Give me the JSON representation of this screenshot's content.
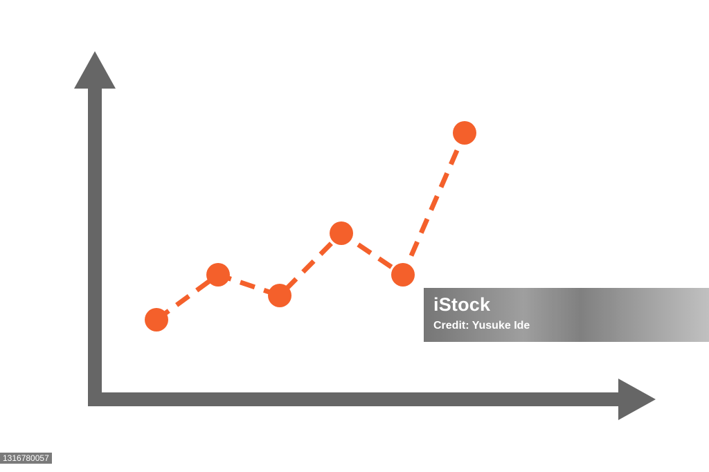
{
  "chart_data": {
    "type": "line",
    "title": "",
    "xlabel": "",
    "ylabel": "",
    "x": [
      1,
      2,
      3,
      4,
      5,
      6
    ],
    "series": [
      {
        "values": [
          2.3,
          3.6,
          3.0,
          4.8,
          3.6,
          7.7
        ]
      }
    ],
    "xlim": [
      0,
      9
    ],
    "ylim": [
      0,
      10
    ],
    "grid": false,
    "line_style": "dashed",
    "markers": "filled-circle",
    "colors": {
      "series": "#f4602b",
      "axes": "#666666"
    },
    "axis_ticks": false
  },
  "watermark": {
    "brand": "iStock",
    "credit": "Credit: Yusuke Ide"
  },
  "image_id": "1316780057"
}
